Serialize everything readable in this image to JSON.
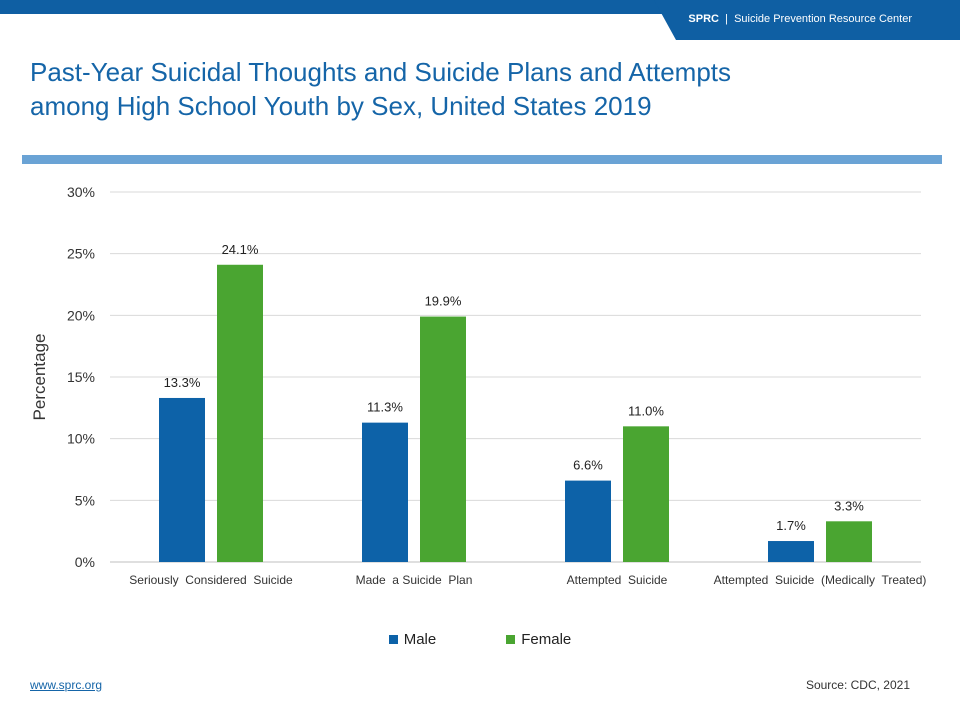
{
  "header": {
    "brand_abbr": "SPRC",
    "brand_sep": "|",
    "brand_name": "Suicide Prevention Resource Center"
  },
  "title_line1": "Past-Year Suicidal Thoughts and Suicide Plans and Attempts",
  "title_line2": "among High School Youth by Sex, United States 2019",
  "colors": {
    "brand": "#0f5fa3",
    "accent_bar": "#6aa3d5",
    "male": "#0d62a8",
    "female": "#4aa531"
  },
  "chart_data": {
    "type": "bar",
    "categories": [
      "Seriously  Considered  Suicide",
      "Made  a Suicide  Plan",
      "Attempted  Suicide",
      "Attempted  Suicide  (Medically  Treated)"
    ],
    "series": [
      {
        "name": "Male",
        "values": [
          13.3,
          11.3,
          6.6,
          1.7
        ],
        "labels": [
          "13.3%",
          "11.3%",
          "6.6%",
          "1.7%"
        ]
      },
      {
        "name": "Female",
        "values": [
          24.1,
          19.9,
          11.0,
          3.3
        ],
        "labels": [
          "24.1%",
          "19.9%",
          "11.0%",
          "3.3%"
        ]
      }
    ],
    "ylabel": "Percentage",
    "xlabel": "",
    "ylim": [
      0,
      30
    ],
    "yticks": [
      0,
      5,
      10,
      15,
      20,
      25,
      30
    ],
    "ytick_labels": [
      "0%",
      "5%",
      "10%",
      "15%",
      "20%",
      "25%",
      "30%"
    ],
    "grid": true,
    "legend": "bottom"
  },
  "footer": {
    "link": "www.sprc.org",
    "source": "Source:  CDC, 2021"
  }
}
